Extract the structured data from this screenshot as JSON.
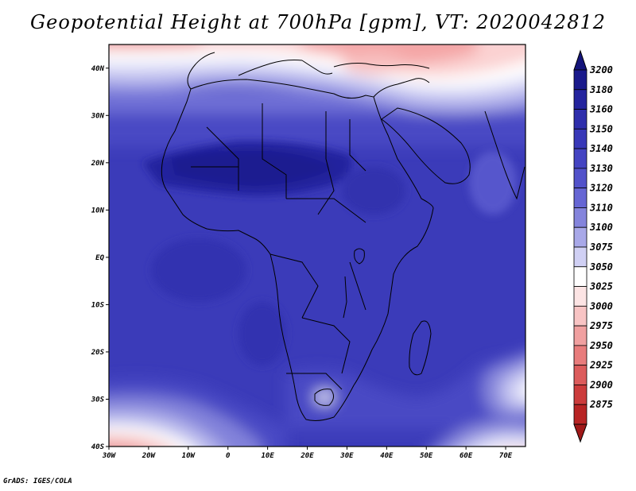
{
  "title": "Geopotential Height at 700hPa [gpm], VT: 2020042812",
  "footer": "GrADS: IGES/COLA",
  "map": {
    "lon_range": [
      -30,
      75
    ],
    "lat_range": [
      -40,
      45
    ],
    "lon_ticks": [
      {
        "value": -30,
        "label": "30W"
      },
      {
        "value": -20,
        "label": "20W"
      },
      {
        "value": -10,
        "label": "10W"
      },
      {
        "value": 0,
        "label": "0"
      },
      {
        "value": 10,
        "label": "10E"
      },
      {
        "value": 20,
        "label": "20E"
      },
      {
        "value": 30,
        "label": "30E"
      },
      {
        "value": 40,
        "label": "40E"
      },
      {
        "value": 50,
        "label": "50E"
      },
      {
        "value": 60,
        "label": "60E"
      },
      {
        "value": 70,
        "label": "70E"
      }
    ],
    "lat_ticks": [
      {
        "value": 40,
        "label": "40N"
      },
      {
        "value": 30,
        "label": "30N"
      },
      {
        "value": 20,
        "label": "20N"
      },
      {
        "value": 10,
        "label": "10N"
      },
      {
        "value": 0,
        "label": "EQ"
      },
      {
        "value": -10,
        "label": "10S"
      },
      {
        "value": -20,
        "label": "20S"
      },
      {
        "value": -30,
        "label": "30S"
      },
      {
        "value": -40,
        "label": "40S"
      }
    ]
  },
  "colorbar": {
    "levels": [
      {
        "label": "3200",
        "color": "#1a1a8c"
      },
      {
        "label": "3180",
        "color": "#24249e"
      },
      {
        "label": "3160",
        "color": "#2e2eac"
      },
      {
        "label": "3150",
        "color": "#3838b8"
      },
      {
        "label": "3140",
        "color": "#4444c2"
      },
      {
        "label": "3130",
        "color": "#5252ca"
      },
      {
        "label": "3120",
        "color": "#6666d4"
      },
      {
        "label": "3110",
        "color": "#8484dc"
      },
      {
        "label": "3100",
        "color": "#a8a8e8"
      },
      {
        "label": "3075",
        "color": "#d0d0f4"
      },
      {
        "label": "3050",
        "color": "#ffffff"
      },
      {
        "label": "3025",
        "color": "#fce4e4"
      },
      {
        "label": "3000",
        "color": "#f8c4c4"
      },
      {
        "label": "2975",
        "color": "#f0a0a0"
      },
      {
        "label": "2950",
        "color": "#e87c7c"
      },
      {
        "label": "2925",
        "color": "#dc5c5c"
      },
      {
        "label": "2900",
        "color": "#cc3c3c"
      },
      {
        "label": "2875",
        "color": "#b82424"
      }
    ],
    "top_color": "#14147a",
    "bottom_color": "#a01818"
  }
}
